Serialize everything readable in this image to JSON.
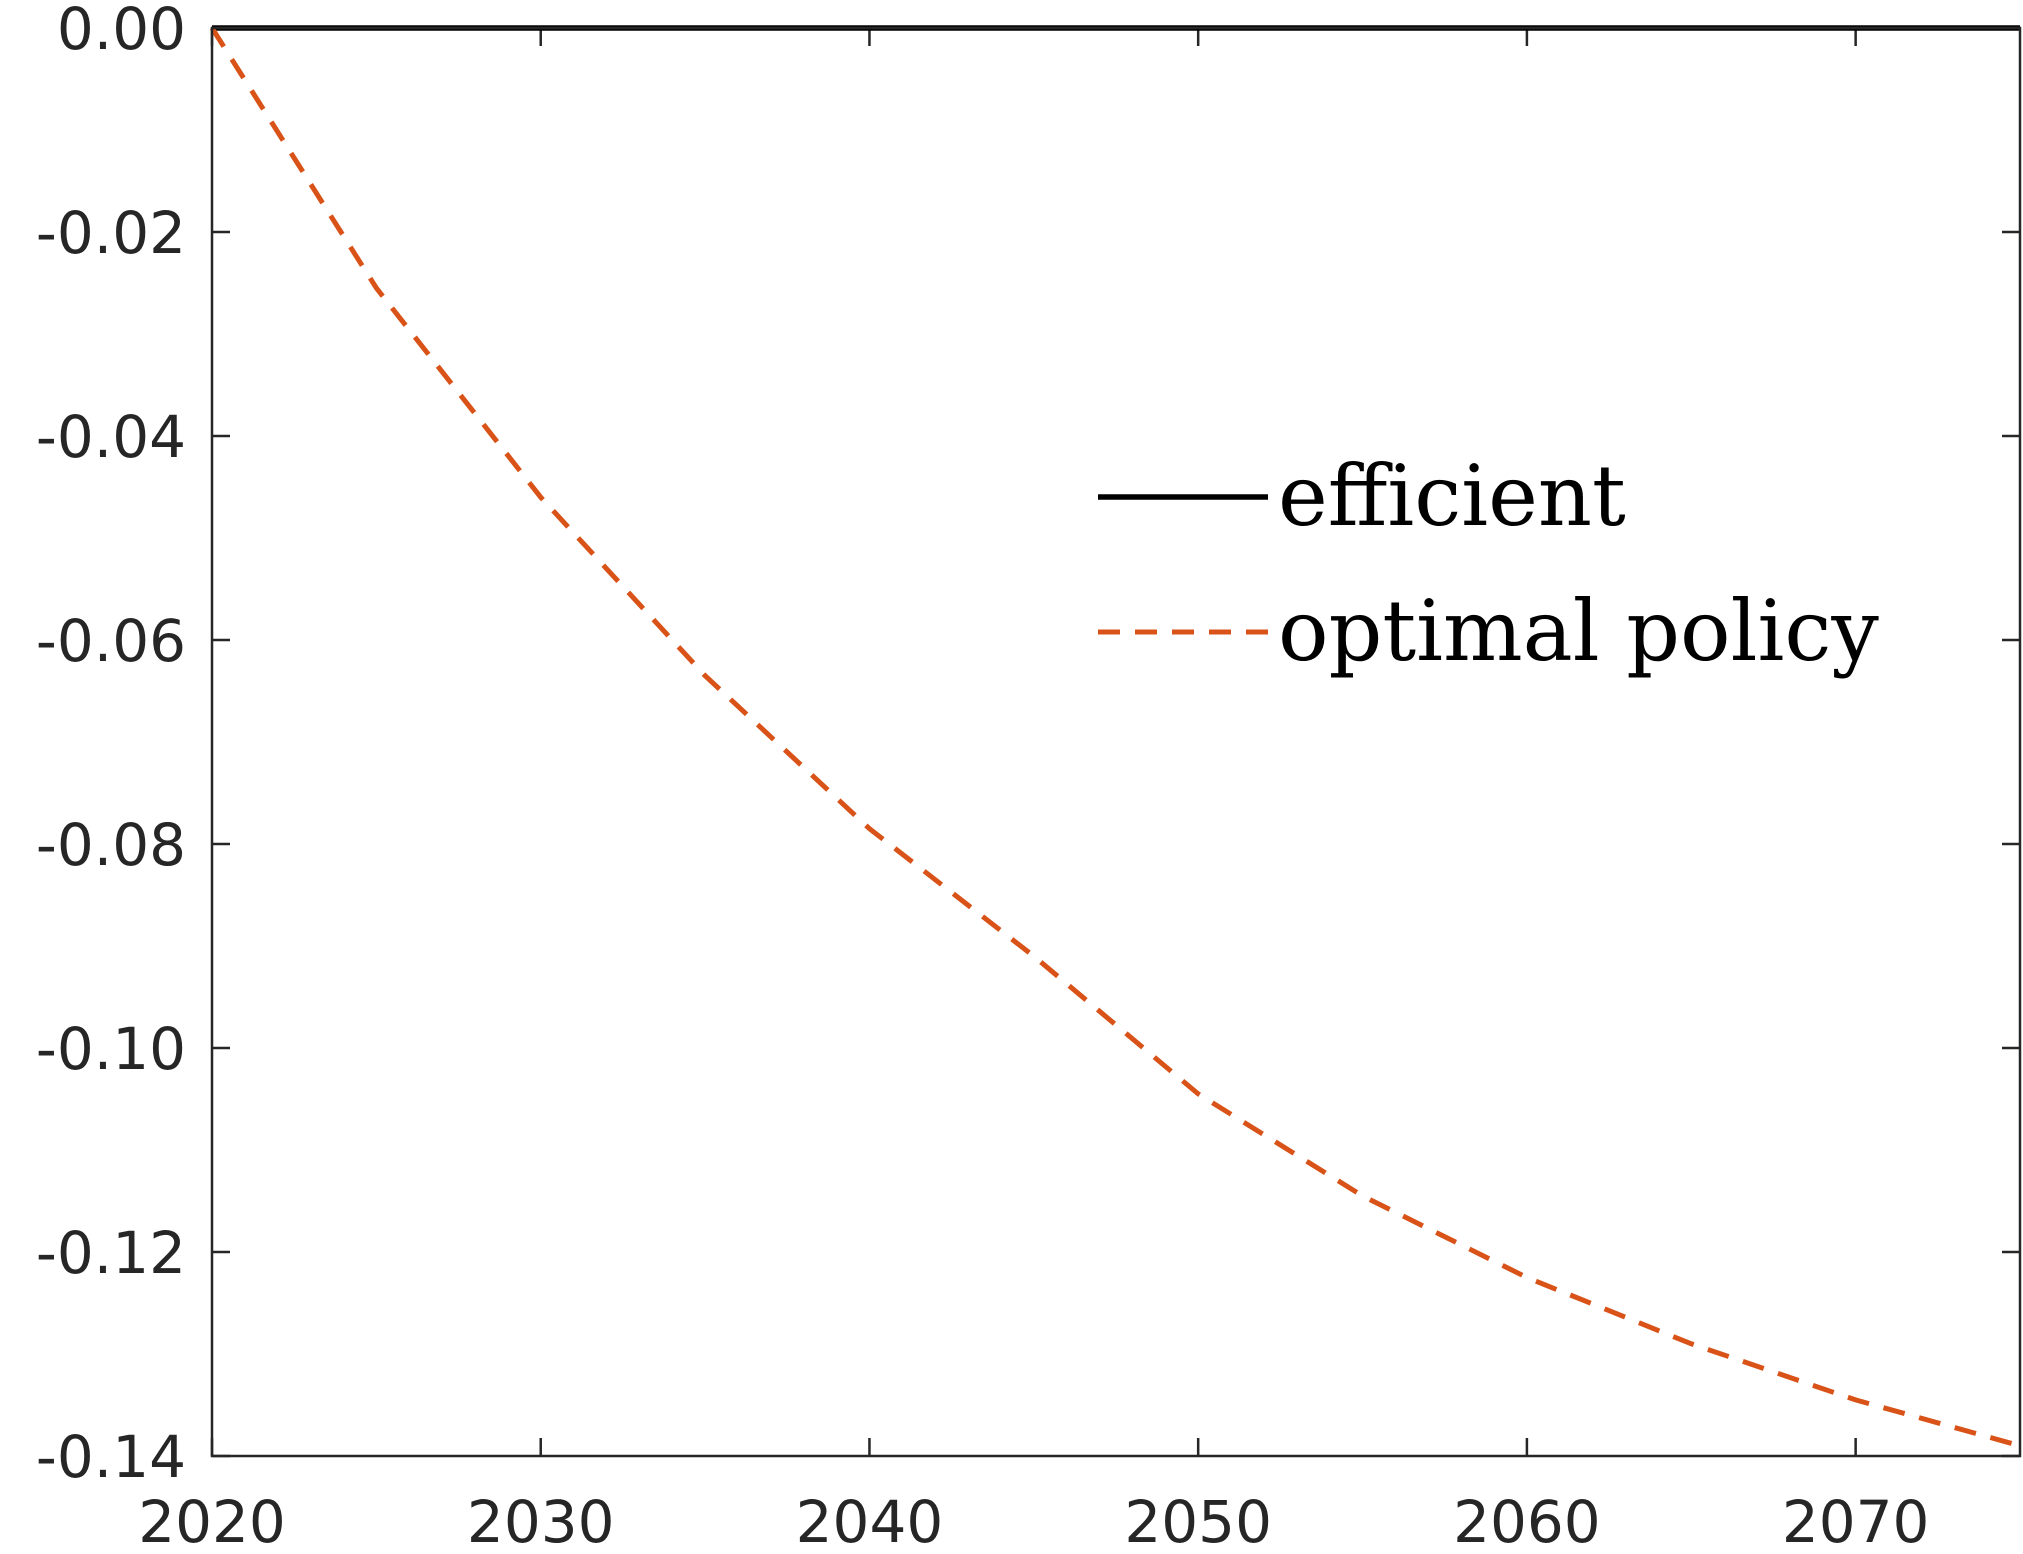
{
  "chart_data": {
    "type": "line",
    "title": "",
    "xlabel": "",
    "ylabel": "",
    "xlim": [
      2020,
      2075
    ],
    "ylim": [
      -0.14,
      0.0
    ],
    "xticks": [
      2020,
      2030,
      2040,
      2050,
      2060,
      2070
    ],
    "xtick_labels": [
      "2020",
      "2030",
      "2040",
      "2050",
      "2060",
      "2070"
    ],
    "yticks": [
      0.0,
      -0.02,
      -0.04,
      -0.06,
      -0.08,
      -0.1,
      -0.12,
      -0.14
    ],
    "ytick_labels": [
      "0.00",
      "-0.02",
      "-0.04",
      "-0.06",
      "-0.08",
      "-0.10",
      "-0.12",
      "-0.14"
    ],
    "grid": false,
    "legend_position": "right",
    "series": [
      {
        "name": "efficient",
        "color": "#000000",
        "style": "solid",
        "x": [
          2020,
          2075
        ],
        "y": [
          0.0,
          0.0
        ]
      },
      {
        "name": "optimal policy",
        "color": "#D95319",
        "style": "dashed",
        "x": [
          2020,
          2025,
          2030,
          2035,
          2040,
          2045,
          2050,
          2055,
          2060,
          2065,
          2070,
          2075
        ],
        "y": [
          0.0,
          -0.0255,
          -0.046,
          -0.0635,
          -0.0785,
          -0.091,
          -0.1045,
          -0.1145,
          -0.1225,
          -0.129,
          -0.1345,
          -0.139
        ]
      }
    ]
  }
}
